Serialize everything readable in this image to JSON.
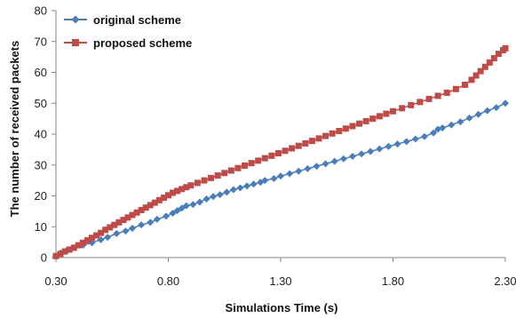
{
  "chart_data": {
    "type": "line",
    "title": "",
    "xlabel": "Simulations Time (s)",
    "ylabel": "The number of received packets",
    "xlim": [
      0.3,
      2.3
    ],
    "ylim": [
      0,
      80
    ],
    "x_ticks": [
      "0.30",
      "0.80",
      "1.30",
      "1.80",
      "2.30"
    ],
    "y_ticks": [
      "0",
      "10",
      "20",
      "30",
      "40",
      "50",
      "60",
      "70",
      "80"
    ],
    "grid": false,
    "legend": "top-left",
    "series": [
      {
        "name": "original scheme",
        "color": "#4a7ebb",
        "marker": "diamond",
        "x": [
          0.3,
          0.32,
          0.35,
          0.38,
          0.42,
          0.46,
          0.5,
          0.53,
          0.57,
          0.61,
          0.64,
          0.68,
          0.72,
          0.75,
          0.79,
          0.82,
          0.84,
          0.86,
          0.88,
          0.91,
          0.94,
          0.97,
          1.0,
          1.03,
          1.06,
          1.09,
          1.12,
          1.15,
          1.18,
          1.21,
          1.23,
          1.27,
          1.3,
          1.34,
          1.38,
          1.42,
          1.46,
          1.5,
          1.54,
          1.58,
          1.62,
          1.66,
          1.7,
          1.74,
          1.78,
          1.82,
          1.86,
          1.9,
          1.94,
          1.98,
          2.0,
          2.02,
          2.06,
          2.1,
          2.14,
          2.18,
          2.22,
          2.26,
          2.3
        ],
        "y": [
          0.5,
          1.5,
          2.5,
          3.2,
          4.0,
          4.8,
          5.8,
          6.6,
          7.8,
          8.6,
          9.5,
          10.6,
          11.4,
          12.4,
          13.4,
          14.4,
          15.2,
          16.0,
          16.8,
          17.2,
          18.0,
          19.0,
          19.8,
          20.4,
          21.2,
          22.0,
          22.6,
          23.2,
          23.8,
          24.4,
          25.0,
          25.6,
          26.4,
          27.2,
          28.0,
          28.8,
          29.6,
          30.4,
          31.2,
          32.0,
          32.8,
          33.6,
          34.4,
          35.2,
          36.0,
          36.8,
          37.6,
          38.4,
          39.2,
          40.4,
          41.6,
          42.0,
          43.0,
          44.0,
          45.2,
          46.4,
          47.6,
          48.6,
          50.0
        ]
      },
      {
        "name": "proposed scheme",
        "color": "#be4b48",
        "marker": "square",
        "x": [
          0.3,
          0.32,
          0.34,
          0.36,
          0.38,
          0.4,
          0.42,
          0.44,
          0.46,
          0.48,
          0.5,
          0.52,
          0.54,
          0.56,
          0.58,
          0.6,
          0.62,
          0.64,
          0.66,
          0.68,
          0.7,
          0.72,
          0.74,
          0.76,
          0.78,
          0.8,
          0.82,
          0.84,
          0.86,
          0.88,
          0.9,
          0.93,
          0.96,
          0.99,
          1.02,
          1.05,
          1.08,
          1.11,
          1.14,
          1.17,
          1.2,
          1.23,
          1.26,
          1.29,
          1.32,
          1.35,
          1.38,
          1.41,
          1.44,
          1.47,
          1.5,
          1.53,
          1.56,
          1.59,
          1.62,
          1.65,
          1.68,
          1.71,
          1.74,
          1.77,
          1.8,
          1.84,
          1.88,
          1.92,
          1.96,
          2.0,
          2.04,
          2.08,
          2.12,
          2.15,
          2.17,
          2.19,
          2.21,
          2.23,
          2.25,
          2.27,
          2.29,
          2.3
        ],
        "y": [
          0.5,
          1.2,
          2.0,
          2.6,
          3.2,
          4.0,
          4.8,
          5.6,
          6.4,
          7.2,
          8.0,
          9.0,
          9.8,
          10.6,
          11.4,
          12.2,
          13.0,
          13.8,
          14.6,
          15.4,
          16.2,
          17.0,
          17.8,
          18.6,
          19.4,
          20.2,
          21.0,
          21.6,
          22.2,
          22.8,
          23.4,
          24.2,
          25.0,
          25.8,
          26.6,
          27.4,
          28.2,
          29.0,
          29.8,
          30.6,
          31.4,
          32.2,
          33.0,
          33.8,
          34.6,
          35.4,
          36.2,
          37.0,
          37.8,
          38.6,
          39.4,
          40.2,
          41.0,
          41.8,
          42.6,
          43.4,
          44.2,
          45.0,
          45.8,
          46.6,
          47.4,
          48.4,
          49.4,
          50.4,
          51.4,
          52.4,
          53.4,
          54.6,
          56.0,
          57.6,
          59.0,
          60.4,
          61.8,
          63.2,
          64.6,
          66.0,
          67.2,
          67.8
        ]
      }
    ]
  }
}
